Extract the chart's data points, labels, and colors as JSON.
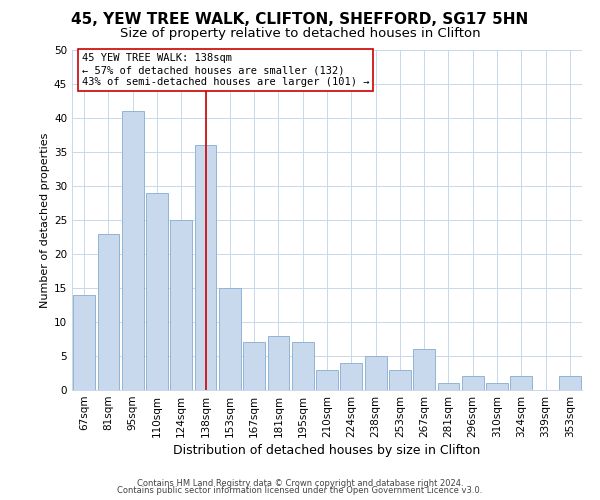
{
  "title1": "45, YEW TREE WALK, CLIFTON, SHEFFORD, SG17 5HN",
  "title2": "Size of property relative to detached houses in Clifton",
  "xlabel": "Distribution of detached houses by size in Clifton",
  "ylabel": "Number of detached properties",
  "footer1": "Contains HM Land Registry data © Crown copyright and database right 2024.",
  "footer2": "Contains public sector information licensed under the Open Government Licence v3.0.",
  "bar_labels": [
    "67sqm",
    "81sqm",
    "95sqm",
    "110sqm",
    "124sqm",
    "138sqm",
    "153sqm",
    "167sqm",
    "181sqm",
    "195sqm",
    "210sqm",
    "224sqm",
    "238sqm",
    "253sqm",
    "267sqm",
    "281sqm",
    "296sqm",
    "310sqm",
    "324sqm",
    "339sqm",
    "353sqm"
  ],
  "bar_values": [
    14,
    23,
    41,
    29,
    25,
    36,
    15,
    7,
    8,
    7,
    3,
    4,
    5,
    3,
    6,
    1,
    2,
    1,
    2,
    0,
    2
  ],
  "bar_color": "#c8d9ee",
  "bar_edge_color": "#93b4d4",
  "vline_x_idx": 5,
  "vline_color": "#cc0000",
  "annotation_text": "45 YEW TREE WALK: 138sqm\n← 57% of detached houses are smaller (132)\n43% of semi-detached houses are larger (101) →",
  "annotation_box_color": "#ffffff",
  "annotation_box_edge": "#cc0000",
  "ylim": [
    0,
    50
  ],
  "yticks": [
    0,
    5,
    10,
    15,
    20,
    25,
    30,
    35,
    40,
    45,
    50
  ],
  "bg_color": "#ffffff",
  "grid_color": "#c8d8ec",
  "title1_fontsize": 11,
  "title2_fontsize": 9.5,
  "xlabel_fontsize": 9,
  "ylabel_fontsize": 8,
  "tick_fontsize": 7.5,
  "footer_fontsize": 6,
  "annotation_fontsize": 7.5
}
